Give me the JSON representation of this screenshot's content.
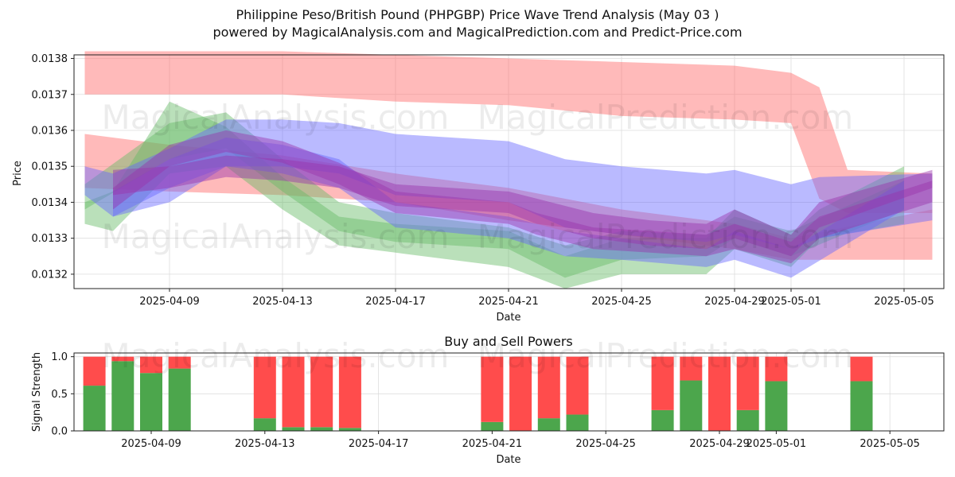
{
  "titles": {
    "line1": "Philippine Peso/British Pound (PHPGBP) Price Wave Trend Analysis (May 03 )",
    "line2": "powered by MagicalAnalysis.com and MagicalPrediction.com and Predict-Price.com"
  },
  "watermarks": [
    "MagicalAnalysis.com",
    "MagicalPrediction.com"
  ],
  "colors": {
    "red": "#ff6666",
    "green": "#66bb66",
    "blue": "#6666ff",
    "purple": "#9933aa",
    "bar_green": "#4ca64c",
    "bar_red": "#ff4c4c"
  },
  "chart_data": [
    {
      "type": "area",
      "xlabel": "Date",
      "ylabel": "Price",
      "ylim": [
        0.01316,
        0.01381
      ],
      "y_ticks": [
        "0.0132",
        "0.0133",
        "0.0134",
        "0.0135",
        "0.0136",
        "0.0137",
        "0.0138"
      ],
      "x_ticks": [
        "2025-04-09",
        "2025-04-13",
        "2025-04-17",
        "2025-04-21",
        "2025-04-25",
        "2025-04-29",
        "2025-05-01",
        "2025-05-05"
      ],
      "grid": true,
      "bands": [
        {
          "color": "red",
          "x": [
            "2025-04-06",
            "2025-04-09",
            "2025-04-13",
            "2025-04-17",
            "2025-04-21",
            "2025-04-25",
            "2025-04-29",
            "2025-05-01",
            "2025-05-02",
            "2025-05-03",
            "2025-05-06"
          ],
          "upper": [
            0.01382,
            0.01382,
            0.01382,
            0.01381,
            0.0138,
            0.01379,
            0.01378,
            0.01376,
            0.01372,
            0.01349,
            0.01348
          ],
          "lower": [
            0.0137,
            0.0137,
            0.0137,
            0.01368,
            0.01367,
            0.01364,
            0.01363,
            0.01362,
            0.01341,
            0.01337,
            0.01337
          ]
        },
        {
          "color": "red",
          "x": [
            "2025-04-06",
            "2025-04-09",
            "2025-04-13",
            "2025-04-17",
            "2025-04-21",
            "2025-04-25",
            "2025-04-29",
            "2025-05-01",
            "2025-05-06"
          ],
          "upper": [
            0.01359,
            0.01356,
            0.01353,
            0.01348,
            0.01344,
            0.01338,
            0.01334,
            0.0133,
            0.01338
          ],
          "lower": [
            0.01344,
            0.01343,
            0.01342,
            0.0134,
            0.01335,
            0.01331,
            0.01327,
            0.01324,
            0.01324
          ]
        },
        {
          "color": "green",
          "x": [
            "2025-04-06",
            "2025-04-07",
            "2025-04-09",
            "2025-04-11",
            "2025-04-13",
            "2025-04-15",
            "2025-04-17",
            "2025-04-21",
            "2025-04-23",
            "2025-04-25",
            "2025-04-28",
            "2025-04-29",
            "2025-05-01",
            "2025-05-02",
            "2025-05-05"
          ],
          "upper": [
            0.0134,
            0.01343,
            0.01368,
            0.01361,
            0.01347,
            0.01336,
            0.01334,
            0.01332,
            0.01325,
            0.0133,
            0.0133,
            0.01338,
            0.01331,
            0.01338,
            0.0135
          ],
          "lower": [
            0.01334,
            0.01332,
            0.01348,
            0.0135,
            0.01338,
            0.01328,
            0.01326,
            0.01322,
            0.01316,
            0.0132,
            0.0132,
            0.01327,
            0.01322,
            0.0133,
            0.01334
          ]
        },
        {
          "color": "green",
          "x": [
            "2025-04-06",
            "2025-04-09",
            "2025-04-11",
            "2025-04-13",
            "2025-04-15",
            "2025-04-17",
            "2025-04-21",
            "2025-04-23",
            "2025-04-25",
            "2025-04-28",
            "2025-04-29",
            "2025-05-01",
            "2025-05-05"
          ],
          "upper": [
            0.01345,
            0.01362,
            0.01365,
            0.01352,
            0.0134,
            0.01337,
            0.01333,
            0.01328,
            0.01332,
            0.01331,
            0.01336,
            0.01332,
            0.01346
          ],
          "lower": [
            0.01338,
            0.01352,
            0.01355,
            0.01343,
            0.01332,
            0.01329,
            0.01327,
            0.01319,
            0.01324,
            0.01325,
            0.0133,
            0.01325,
            0.01338
          ]
        },
        {
          "color": "blue",
          "x": [
            "2025-04-06",
            "2025-04-07",
            "2025-04-09",
            "2025-04-11",
            "2025-04-13",
            "2025-04-15",
            "2025-04-17",
            "2025-04-21",
            "2025-04-23",
            "2025-04-25",
            "2025-04-28",
            "2025-04-29",
            "2025-05-01",
            "2025-05-02",
            "2025-05-06"
          ],
          "upper": [
            0.0135,
            0.01348,
            0.01355,
            0.01363,
            0.01363,
            0.01362,
            0.01359,
            0.01357,
            0.01352,
            0.0135,
            0.01348,
            0.01349,
            0.01345,
            0.01347,
            0.01348
          ],
          "lower": [
            0.01342,
            0.01336,
            0.0134,
            0.0135,
            0.0135,
            0.01348,
            0.01342,
            0.0134,
            0.01333,
            0.01331,
            0.01329,
            0.01331,
            0.01327,
            0.0133,
            0.01335
          ]
        },
        {
          "color": "blue",
          "x": [
            "2025-04-07",
            "2025-04-09",
            "2025-04-11",
            "2025-04-13",
            "2025-04-15",
            "2025-04-17",
            "2025-04-21",
            "2025-04-23",
            "2025-04-25",
            "2025-04-28",
            "2025-04-29",
            "2025-05-01",
            "2025-05-05"
          ],
          "upper": [
            0.01343,
            0.01352,
            0.01358,
            0.01356,
            0.01352,
            0.0134,
            0.01336,
            0.01332,
            0.0133,
            0.01327,
            0.01332,
            0.01327,
            0.01346
          ],
          "lower": [
            0.01336,
            0.01344,
            0.0135,
            0.01348,
            0.01344,
            0.01333,
            0.0133,
            0.01325,
            0.01324,
            0.01322,
            0.01324,
            0.01319,
            0.01338
          ]
        },
        {
          "color": "purple",
          "x": [
            "2025-04-07",
            "2025-04-09",
            "2025-04-11",
            "2025-04-13",
            "2025-04-15",
            "2025-04-17",
            "2025-04-21",
            "2025-04-22",
            "2025-04-24",
            "2025-04-26",
            "2025-04-28",
            "2025-04-29",
            "2025-05-01",
            "2025-05-02",
            "2025-05-06"
          ],
          "upper": [
            0.01349,
            0.0135,
            0.01353,
            0.01352,
            0.0135,
            0.01345,
            0.01343,
            0.01341,
            0.01337,
            0.01335,
            0.01334,
            0.01338,
            0.01331,
            0.0134,
            0.01349
          ],
          "lower": [
            0.01342,
            0.01344,
            0.01347,
            0.01346,
            0.01344,
            0.01339,
            0.01337,
            0.01334,
            0.0133,
            0.01328,
            0.01327,
            0.0133,
            0.01325,
            0.01333,
            0.01344
          ]
        },
        {
          "color": "purple",
          "x": [
            "2025-04-07",
            "2025-04-09",
            "2025-04-11",
            "2025-04-13",
            "2025-04-15",
            "2025-04-17",
            "2025-04-21",
            "2025-04-22",
            "2025-04-24",
            "2025-04-26",
            "2025-04-28",
            "2025-04-29",
            "2025-05-01",
            "2025-05-02",
            "2025-05-06"
          ],
          "upper": [
            0.01344,
            0.01356,
            0.0136,
            0.01357,
            0.01351,
            0.01343,
            0.0134,
            0.01337,
            0.01333,
            0.01332,
            0.01331,
            0.01334,
            0.01329,
            0.01336,
            0.01346
          ],
          "lower": [
            0.01338,
            0.0135,
            0.01354,
            0.01351,
            0.01345,
            0.01337,
            0.01334,
            0.01331,
            0.01327,
            0.01326,
            0.01325,
            0.01327,
            0.01323,
            0.0133,
            0.0134
          ]
        }
      ]
    },
    {
      "type": "bar",
      "title": "Buy and Sell Powers",
      "xlabel": "Date",
      "ylabel": "Signal Strength",
      "ylim": [
        0,
        1.05
      ],
      "y_ticks": [
        "0.0",
        "0.5",
        "1.0"
      ],
      "x_ticks": [
        "2025-04-09",
        "2025-04-13",
        "2025-04-17",
        "2025-04-21",
        "2025-04-25",
        "2025-04-29",
        "2025-05-01",
        "2025-05-05"
      ],
      "grid": true,
      "bars": [
        {
          "date": "2025-04-07",
          "buy": 0.61,
          "sell": 0.39
        },
        {
          "date": "2025-04-08",
          "buy": 0.94,
          "sell": 0.06
        },
        {
          "date": "2025-04-09",
          "buy": 0.78,
          "sell": 0.22
        },
        {
          "date": "2025-04-10",
          "buy": 0.84,
          "sell": 0.16
        },
        {
          "date": "2025-04-13",
          "buy": 0.17,
          "sell": 0.83
        },
        {
          "date": "2025-04-14",
          "buy": 0.05,
          "sell": 0.95
        },
        {
          "date": "2025-04-15",
          "buy": 0.05,
          "sell": 0.95
        },
        {
          "date": "2025-04-16",
          "buy": 0.04,
          "sell": 0.96
        },
        {
          "date": "2025-04-21",
          "buy": 0.12,
          "sell": 0.88
        },
        {
          "date": "2025-04-22",
          "buy": 0.0,
          "sell": 1.0
        },
        {
          "date": "2025-04-23",
          "buy": 0.17,
          "sell": 0.83
        },
        {
          "date": "2025-04-24",
          "buy": 0.22,
          "sell": 0.78
        },
        {
          "date": "2025-04-27",
          "buy": 0.28,
          "sell": 0.72
        },
        {
          "date": "2025-04-28",
          "buy": 0.68,
          "sell": 0.32
        },
        {
          "date": "2025-04-29",
          "buy": 0.0,
          "sell": 1.0
        },
        {
          "date": "2025-04-30",
          "buy": 0.28,
          "sell": 0.72
        },
        {
          "date": "2025-05-01",
          "buy": 0.67,
          "sell": 0.33
        },
        {
          "date": "2025-05-04",
          "buy": 0.67,
          "sell": 0.33
        }
      ]
    }
  ]
}
